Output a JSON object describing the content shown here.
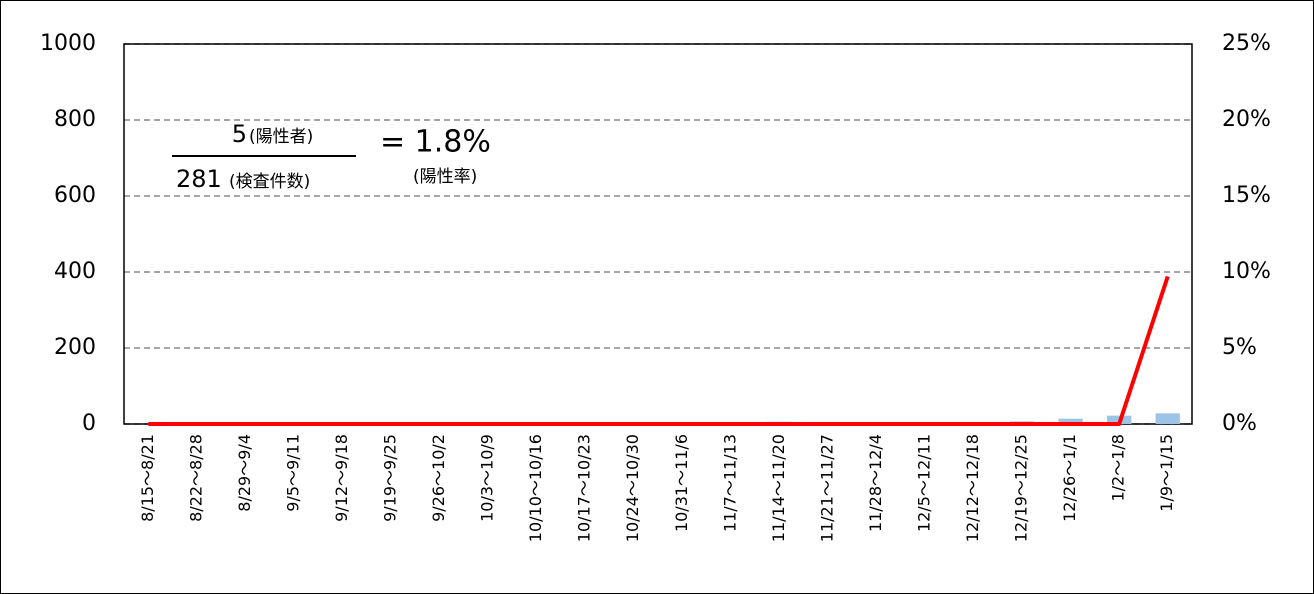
{
  "chart_data": {
    "type": "bar_line",
    "categories": [
      "8/15～8/21",
      "8/22～8/28",
      "8/29～9/4",
      "9/5～9/11",
      "9/12～9/18",
      "9/19～9/25",
      "9/26～10/2",
      "10/3～10/9",
      "10/10～10/16",
      "10/17～10/23",
      "10/24～10/30",
      "10/31～11/6",
      "11/7～11/13",
      "11/14～11/20",
      "11/21～11/27",
      "11/28～12/4",
      "12/5～12/11",
      "12/12～12/18",
      "12/19～12/25",
      "12/26～1/1",
      "1/2～1/8",
      "1/9～1/15"
    ],
    "series": [
      {
        "color": "#9dc3e6",
        "values": [
          0,
          0,
          0,
          0,
          0,
          0,
          0,
          0,
          0,
          0,
          0,
          0,
          0,
          6,
          0,
          5,
          5,
          3,
          7,
          14,
          22,
          28
        ]
      },
      {
        "color": "#ff0000",
        "axis": "y2",
        "values": [
          0,
          0,
          0,
          0,
          0,
          0,
          0,
          0,
          0,
          0,
          0,
          0,
          0,
          0,
          0,
          0,
          0,
          0,
          0,
          0,
          0,
          9.7
        ]
      }
    ],
    "ylim": [
      0,
      1000
    ],
    "yticks": [
      0,
      200,
      400,
      600,
      800,
      1000
    ],
    "y2lim": [
      0,
      25
    ],
    "y2ticks": [
      {
        "value": 0,
        "label": "0%"
      },
      {
        "value": 5,
        "label": "5%"
      },
      {
        "value": 10,
        "label": "10%"
      },
      {
        "value": 15,
        "label": "15%"
      },
      {
        "value": 20,
        "label": "20%"
      },
      {
        "value": 25,
        "label": "25%"
      }
    ],
    "grid": true,
    "annotations": [
      "5",
      "(陽性者)",
      "281",
      "(検査件数)",
      "= 1.8%",
      "(陽性率)"
    ]
  }
}
